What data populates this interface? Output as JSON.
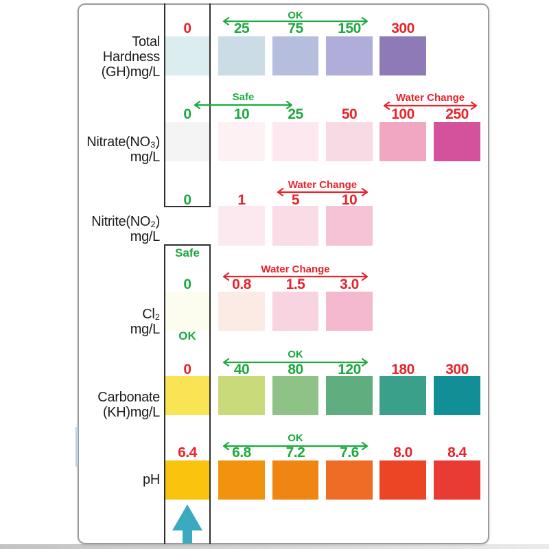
{
  "colors": {
    "ok": "#1ca93d",
    "bad": "#e8232a",
    "text": "#1c1c1c",
    "strip_line": "#2e2e2e",
    "card_border": "#9b9b9b",
    "card_bg": "#ffffff",
    "pointer": "#3aabbe",
    "edge_sliver": "#b9d3e2",
    "bottom_edge_left": "#c3c3c3",
    "bottom_edge_right": "#ebebeb"
  },
  "pointer": {
    "name": "strip-pointer-up-arrow"
  },
  "chart_data": {
    "type": "table",
    "rows": [
      {
        "id": "total-hardness",
        "parameter_lines": [
          "Total",
          "Hardness",
          "(GH)mg/L"
        ],
        "annotations": [
          {
            "text": "OK",
            "tone": "ok"
          }
        ],
        "cells": [
          {
            "value": "0",
            "tone": "bad",
            "color": "#dcedf0"
          },
          {
            "value": "25",
            "tone": "ok",
            "color": "#cbdce6"
          },
          {
            "value": "75",
            "tone": "ok",
            "color": "#b6bede"
          },
          {
            "value": "150",
            "tone": "ok",
            "color": "#b1addb"
          },
          {
            "value": "300",
            "tone": "bad",
            "color": "#8f7ab8"
          }
        ]
      },
      {
        "id": "nitrate",
        "parameter_lines": [
          "Nitrate(NO₃)",
          "mg/L"
        ],
        "annotations": [
          {
            "text": "Safe",
            "tone": "ok"
          },
          {
            "text": "Water Change",
            "tone": "bad"
          }
        ],
        "cells": [
          {
            "value": "0",
            "tone": "ok",
            "color": "#f4f4f4"
          },
          {
            "value": "10",
            "tone": "ok",
            "color": "#fdf1f3"
          },
          {
            "value": "25",
            "tone": "ok",
            "color": "#fce8ee"
          },
          {
            "value": "50",
            "tone": "bad",
            "color": "#f8dae4"
          },
          {
            "value": "100",
            "tone": "bad",
            "color": "#f1a6c2"
          },
          {
            "value": "250",
            "tone": "bad",
            "color": "#d4519c"
          }
        ]
      },
      {
        "id": "nitrite",
        "parameter_lines": [
          "Nitrite(NO₂)",
          "mg/L"
        ],
        "annotations": [
          {
            "text": "Water Change",
            "tone": "bad"
          }
        ],
        "strip_note": {
          "text": "Safe",
          "tone": "ok"
        },
        "cells": [
          {
            "value": "0",
            "tone": "ok",
            "color": "#ffffff",
            "bordered": true
          },
          {
            "value": "1",
            "tone": "bad",
            "color": "#fce9ef"
          },
          {
            "value": "5",
            "tone": "bad",
            "color": "#f9dce6"
          },
          {
            "value": "10",
            "tone": "bad",
            "color": "#f6c2d6"
          }
        ]
      },
      {
        "id": "chlorine",
        "parameter_lines": [
          "Cl₂",
          "mg/L"
        ],
        "annotations": [
          {
            "text": "Water Change",
            "tone": "bad"
          }
        ],
        "strip_note": {
          "text": "OK",
          "tone": "ok"
        },
        "cells": [
          {
            "value": "0",
            "tone": "ok",
            "color": "#fcfdee"
          },
          {
            "value": "0.8",
            "tone": "bad",
            "color": "#fcebe4"
          },
          {
            "value": "1.5",
            "tone": "bad",
            "color": "#f8d4e0"
          },
          {
            "value": "3.0",
            "tone": "bad",
            "color": "#f4b9ce"
          }
        ]
      },
      {
        "id": "carbonate",
        "parameter_lines": [
          "Carbonate",
          "(KH)mg/L"
        ],
        "annotations": [
          {
            "text": "OK",
            "tone": "ok"
          }
        ],
        "cells": [
          {
            "value": "0",
            "tone": "bad",
            "color": "#f9e455"
          },
          {
            "value": "40",
            "tone": "ok",
            "color": "#c9da7b"
          },
          {
            "value": "80",
            "tone": "ok",
            "color": "#8ec287"
          },
          {
            "value": "120",
            "tone": "ok",
            "color": "#60ae80"
          },
          {
            "value": "180",
            "tone": "bad",
            "color": "#3aa089"
          },
          {
            "value": "300",
            "tone": "bad",
            "color": "#128f96"
          }
        ]
      },
      {
        "id": "ph",
        "parameter_lines": [
          "pH"
        ],
        "annotations": [
          {
            "text": "OK",
            "tone": "ok"
          }
        ],
        "cells": [
          {
            "value": "6.4",
            "tone": "bad",
            "color": "#fac30d"
          },
          {
            "value": "6.8",
            "tone": "ok",
            "color": "#f2930f"
          },
          {
            "value": "7.2",
            "tone": "ok",
            "color": "#f08514"
          },
          {
            "value": "7.6",
            "tone": "ok",
            "color": "#ee6c26"
          },
          {
            "value": "8.0",
            "tone": "bad",
            "color": "#eb4526"
          },
          {
            "value": "8.4",
            "tone": "bad",
            "color": "#e93a33"
          }
        ]
      }
    ]
  }
}
